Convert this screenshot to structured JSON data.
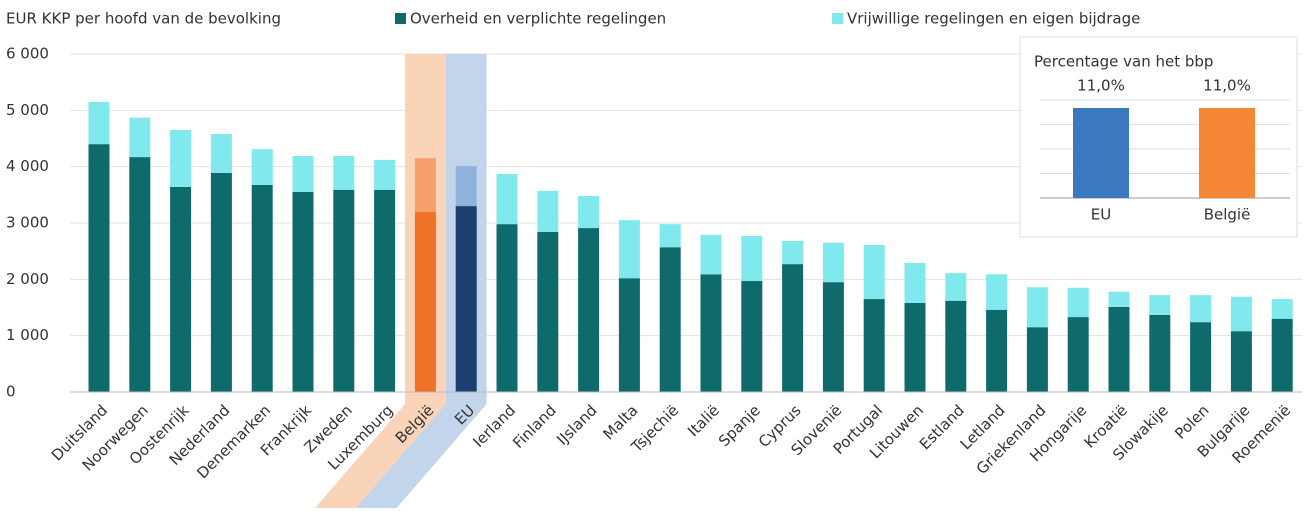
{
  "chart_data": [
    {
      "type": "stacked_bar",
      "y_label": "EUR KKP per hoofd van de bevolking",
      "categories": [
        "Duitsland",
        "Noorwegen",
        "Oostenrijk",
        "Nederland",
        "Denemarken",
        "Frankrijk",
        "Zweden",
        "Luxemburg",
        "België",
        "EU",
        "Ierland",
        "Finland",
        "IJsland",
        "Malta",
        "Tsjechië",
        "Italië",
        "Spanje",
        "Cyprus",
        "Slovenië",
        "Portugal",
        "Litouwen",
        "Estland",
        "Letland",
        "Griekenland",
        "Hongarije",
        "Kroatië",
        "Slowakije",
        "Polen",
        "Bulgarije",
        "Roemenië"
      ],
      "series": [
        {
          "name": "Overheid en verplichte regelingen",
          "color": "#0f6b6b",
          "values": [
            4400,
            4170,
            3640,
            3890,
            3675,
            3550,
            3590,
            3590,
            3200,
            3300,
            2980,
            2840,
            2910,
            2020,
            2570,
            2090,
            1970,
            2270,
            1950,
            1650,
            1580,
            1620,
            1460,
            1150,
            1330,
            1510,
            1370,
            1240,
            1080,
            1300
          ]
        },
        {
          "name": "Vrijwillige regelingen en eigen bijdrage",
          "color": "#80e9ee",
          "values": [
            750,
            700,
            1010,
            690,
            635,
            640,
            600,
            530,
            950,
            710,
            890,
            730,
            570,
            1030,
            410,
            700,
            800,
            410,
            700,
            960,
            710,
            490,
            630,
            710,
            520,
            270,
            350,
            480,
            610,
            350
          ]
        }
      ],
      "highlight": {
        "België": {
          "colors": [
            "#f07228",
            "#f5a06c"
          ],
          "band": "#f9d4b8"
        },
        "EU": {
          "colors": [
            "#1b3f6e",
            "#8fb3dc"
          ],
          "band": "#c3d5eb"
        }
      },
      "ylim": [
        0,
        6000
      ],
      "yticks": [
        0,
        {
          "value": 1000,
          "label": "1 000"
        },
        {
          "value": 2000,
          "label": "2 000"
        },
        {
          "value": 3000,
          "label": "3 000"
        },
        {
          "value": 4000,
          "label": "4 000"
        },
        {
          "value": 5000,
          "label": "5 000"
        },
        {
          "value": 6000,
          "label": "6 000"
        }
      ],
      "grid": true
    },
    {
      "type": "bar",
      "title": "Percentage van het bbp",
      "categories": [
        "EU",
        "België"
      ],
      "values": [
        11.0,
        11.0
      ],
      "value_labels": [
        "11,0%",
        "11,0%"
      ],
      "colors": [
        "#3a78c0",
        "#f58636"
      ],
      "ylim": [
        0,
        13.2
      ],
      "grid": true,
      "gridlines": [
        0,
        3,
        6,
        9,
        12
      ]
    }
  ]
}
